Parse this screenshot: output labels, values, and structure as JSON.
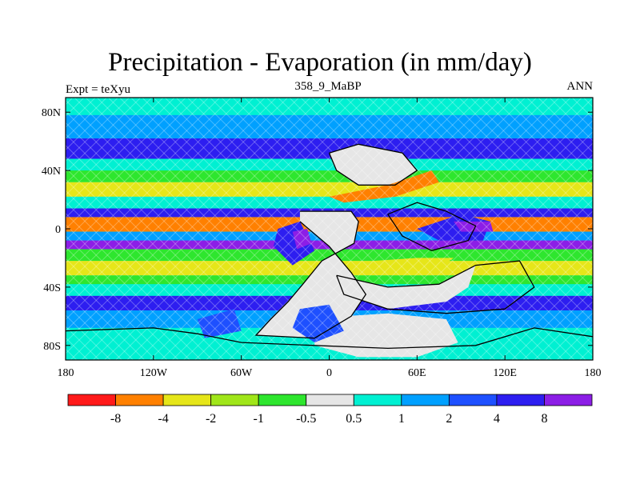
{
  "figure": {
    "title": "Precipitation - Evaporation (in mm/day)",
    "left_string": "Expt = teXyu",
    "center_string": "358_9_MaBP",
    "right_string": "ANN"
  },
  "chart_data": {
    "type": "heatmap",
    "projection": "cylindrical-equidistant",
    "variable": "Precipitation - Evaporation",
    "units": "mm/day",
    "season": "ANN",
    "x_range": [
      -180,
      180
    ],
    "y_range": [
      -90,
      90
    ],
    "x_ticks": [
      {
        "value": -180,
        "label": "180"
      },
      {
        "value": -120,
        "label": "120W"
      },
      {
        "value": -60,
        "label": "60W"
      },
      {
        "value": 0,
        "label": "0"
      },
      {
        "value": 60,
        "label": "60E"
      },
      {
        "value": 120,
        "label": "120E"
      },
      {
        "value": 180,
        "label": "180"
      }
    ],
    "y_ticks": [
      {
        "value": 80,
        "label": "80N"
      },
      {
        "value": 40,
        "label": "40N"
      },
      {
        "value": 0,
        "label": "0"
      },
      {
        "value": -40,
        "label": "40S"
      },
      {
        "value": -80,
        "label": "80S"
      }
    ],
    "colorbar": {
      "levels": [
        "-8",
        "-4",
        "-2",
        "-1",
        "-0.5",
        "0.5",
        "1",
        "2",
        "4",
        "8"
      ],
      "colors": [
        "#ff1a1a",
        "#ff8000",
        "#e6e619",
        "#a0e619",
        "#2ee62e",
        "#e6e6e6",
        "#00f0d2",
        "#00a0ff",
        "#1e50ff",
        "#2d1ef0",
        "#8c1ee6"
      ]
    },
    "zonal_bands": [
      {
        "lat_range": [
          78,
          90
        ],
        "class": 6
      },
      {
        "lat_range": [
          62,
          78
        ],
        "class": 7
      },
      {
        "lat_range": [
          48,
          62
        ],
        "class": 9
      },
      {
        "lat_range": [
          40,
          48
        ],
        "class": 6
      },
      {
        "lat_range": [
          32,
          40
        ],
        "class": 4
      },
      {
        "lat_range": [
          22,
          32
        ],
        "class": 2
      },
      {
        "lat_range": [
          14,
          22
        ],
        "class": 6
      },
      {
        "lat_range": [
          8,
          14
        ],
        "class": 9
      },
      {
        "lat_range": [
          -2,
          8
        ],
        "class": 1
      },
      {
        "lat_range": [
          -8,
          -2
        ],
        "class": 7
      },
      {
        "lat_range": [
          -14,
          -8
        ],
        "class": 10
      },
      {
        "lat_range": [
          -22,
          -14
        ],
        "class": 4
      },
      {
        "lat_range": [
          -32,
          -22
        ],
        "class": 2
      },
      {
        "lat_range": [
          -38,
          -32
        ],
        "class": 4
      },
      {
        "lat_range": [
          -46,
          -38
        ],
        "class": 6
      },
      {
        "lat_range": [
          -56,
          -46
        ],
        "class": 9
      },
      {
        "lat_range": [
          -68,
          -56
        ],
        "class": 7
      },
      {
        "lat_range": [
          -90,
          -68
        ],
        "class": 6
      }
    ],
    "regions": [
      {
        "name": "central-land",
        "class": 5,
        "points": [
          [
            -20,
            12
          ],
          [
            15,
            12
          ],
          [
            20,
            5
          ],
          [
            17,
            -10
          ],
          [
            -5,
            -22
          ],
          [
            -18,
            -38
          ],
          [
            -28,
            -50
          ],
          [
            -40,
            -62
          ],
          [
            -50,
            -73
          ],
          [
            -10,
            -75
          ],
          [
            15,
            -60
          ],
          [
            25,
            -45
          ],
          [
            15,
            -30
          ],
          [
            0,
            -12
          ],
          [
            -20,
            5
          ]
        ]
      },
      {
        "name": "southern-land",
        "class": 5,
        "points": [
          [
            -10,
            -68
          ],
          [
            10,
            -60
          ],
          [
            40,
            -58
          ],
          [
            80,
            -62
          ],
          [
            88,
            -78
          ],
          [
            60,
            -88
          ],
          [
            20,
            -88
          ],
          [
            -10,
            -80
          ]
        ]
      },
      {
        "name": "northern-land",
        "class": 5,
        "points": [
          [
            0,
            52
          ],
          [
            20,
            58
          ],
          [
            50,
            52
          ],
          [
            60,
            40
          ],
          [
            45,
            30
          ],
          [
            20,
            30
          ],
          [
            5,
            40
          ]
        ]
      },
      {
        "name": "east-land",
        "class": 5,
        "points": [
          [
            5,
            -32
          ],
          [
            40,
            -40
          ],
          [
            75,
            -38
          ],
          [
            100,
            -25
          ],
          [
            95,
            -40
          ],
          [
            80,
            -50
          ],
          [
            40,
            -55
          ],
          [
            10,
            -45
          ]
        ]
      },
      {
        "name": "wet-central-blue",
        "class": 9,
        "points": [
          [
            -35,
            0
          ],
          [
            -20,
            5
          ],
          [
            -10,
            -15
          ],
          [
            -25,
            -25
          ],
          [
            -38,
            -12
          ]
        ]
      },
      {
        "name": "wet-central-purple",
        "class": 10,
        "points": [
          [
            -25,
            -2
          ],
          [
            -15,
            0
          ],
          [
            -12,
            -10
          ],
          [
            -22,
            -14
          ]
        ]
      },
      {
        "name": "dry-sahara",
        "class": 1,
        "points": [
          [
            0,
            22
          ],
          [
            40,
            30
          ],
          [
            70,
            40
          ],
          [
            75,
            32
          ],
          [
            45,
            22
          ],
          [
            10,
            18
          ]
        ]
      },
      {
        "name": "dry-subtropic",
        "class": 2,
        "points": [
          [
            25,
            -28
          ],
          [
            70,
            -30
          ],
          [
            85,
            -20
          ],
          [
            60,
            -20
          ],
          [
            30,
            -22
          ]
        ]
      },
      {
        "name": "wet-east-blue",
        "class": 9,
        "points": [
          [
            60,
            0
          ],
          [
            90,
            10
          ],
          [
            110,
            5
          ],
          [
            105,
            -8
          ],
          [
            75,
            -8
          ]
        ]
      },
      {
        "name": "wet-east-purple",
        "class": 10,
        "points": [
          [
            85,
            5
          ],
          [
            110,
            5
          ],
          [
            112,
            -2
          ],
          [
            90,
            -2
          ]
        ]
      },
      {
        "name": "southern-wet",
        "class": 8,
        "points": [
          [
            -20,
            -55
          ],
          [
            0,
            -52
          ],
          [
            10,
            -70
          ],
          [
            -10,
            -78
          ],
          [
            -25,
            -68
          ]
        ]
      },
      {
        "name": "southern-wet-2",
        "class": 8,
        "points": [
          [
            -90,
            -62
          ],
          [
            -65,
            -55
          ],
          [
            -60,
            -70
          ],
          [
            -85,
            -75
          ]
        ]
      }
    ],
    "land_outlines": [
      {
        "name": "central",
        "points": [
          [
            -20,
            12
          ],
          [
            15,
            12
          ],
          [
            20,
            5
          ],
          [
            17,
            -10
          ],
          [
            -5,
            -22
          ],
          [
            -18,
            -38
          ],
          [
            -28,
            -50
          ],
          [
            -40,
            -62
          ],
          [
            -50,
            -73
          ],
          [
            -10,
            -75
          ],
          [
            15,
            -60
          ],
          [
            25,
            -45
          ],
          [
            15,
            -30
          ],
          [
            0,
            -12
          ],
          [
            -20,
            5
          ]
        ]
      },
      {
        "name": "south-polar",
        "points": [
          [
            -180,
            -70
          ],
          [
            -120,
            -68
          ],
          [
            -90,
            -72
          ],
          [
            -60,
            -78
          ],
          [
            -10,
            -80
          ],
          [
            40,
            -82
          ],
          [
            100,
            -80
          ],
          [
            140,
            -68
          ],
          [
            180,
            -74
          ]
        ]
      },
      {
        "name": "north",
        "points": [
          [
            0,
            52
          ],
          [
            20,
            58
          ],
          [
            50,
            52
          ],
          [
            60,
            40
          ],
          [
            45,
            30
          ],
          [
            20,
            30
          ],
          [
            5,
            40
          ],
          [
            0,
            52
          ]
        ]
      },
      {
        "name": "east",
        "points": [
          [
            5,
            -32
          ],
          [
            40,
            -40
          ],
          [
            75,
            -38
          ],
          [
            100,
            -25
          ],
          [
            130,
            -22
          ],
          [
            140,
            -40
          ],
          [
            120,
            -55
          ],
          [
            80,
            -58
          ],
          [
            40,
            -55
          ],
          [
            10,
            -45
          ],
          [
            5,
            -32
          ]
        ]
      },
      {
        "name": "east-north",
        "points": [
          [
            40,
            10
          ],
          [
            60,
            18
          ],
          [
            80,
            12
          ],
          [
            100,
            2
          ],
          [
            95,
            -8
          ],
          [
            70,
            -15
          ],
          [
            50,
            -5
          ],
          [
            40,
            10
          ]
        ]
      }
    ]
  }
}
